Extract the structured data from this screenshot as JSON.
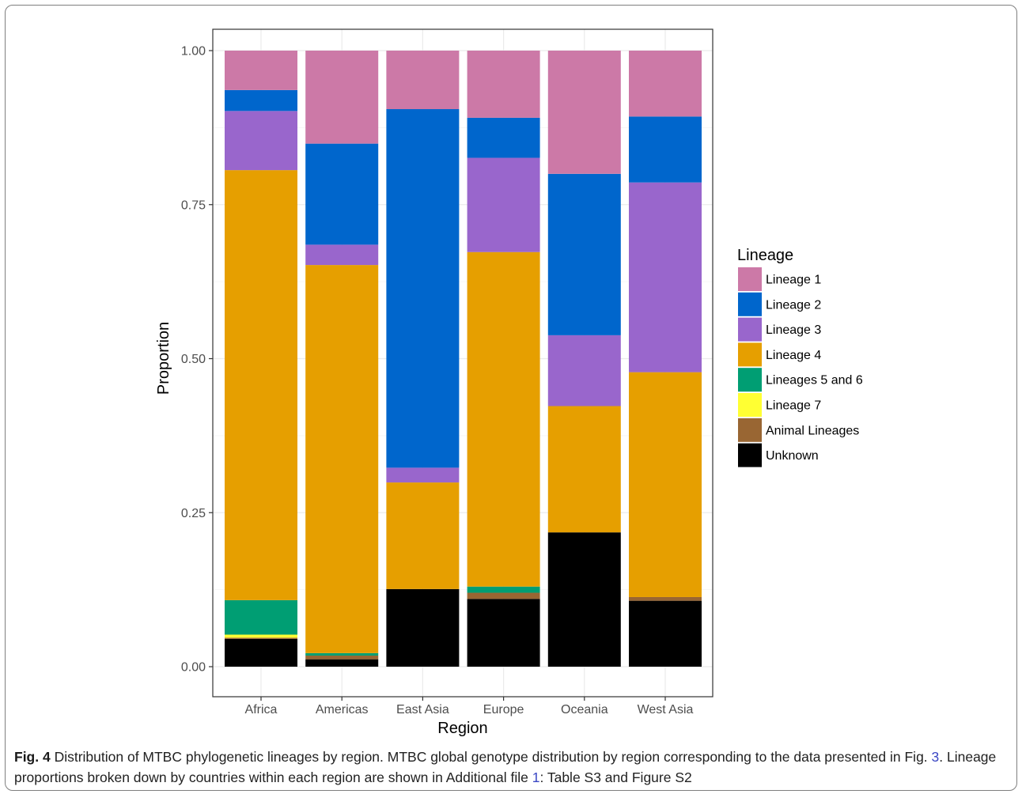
{
  "chart_data": {
    "type": "bar",
    "stacked": true,
    "xlabel": "Region",
    "ylabel": "Proportion",
    "ylim": [
      0,
      1
    ],
    "yticks": [
      "0.00",
      "0.25",
      "0.50",
      "0.75",
      "1.00"
    ],
    "ytick_values": [
      0,
      0.25,
      0.5,
      0.75,
      1.0
    ],
    "categories": [
      "Africa",
      "Americas",
      "East Asia",
      "Europe",
      "Oceania",
      "West Asia"
    ],
    "legend_title": "Lineage",
    "legend_position": "right",
    "grid": true,
    "series": [
      {
        "name": "Unknown",
        "color": "#000000",
        "values": [
          0.045,
          0.012,
          0.126,
          0.11,
          0.218,
          0.107
        ]
      },
      {
        "name": "Animal Lineages",
        "color": "#996633",
        "values": [
          0.002,
          0.006,
          0.0,
          0.01,
          0.0,
          0.006
        ]
      },
      {
        "name": "Lineage 7",
        "color": "#ffff33",
        "values": [
          0.005,
          0.0,
          0.0,
          0.0,
          0.0,
          0.0
        ]
      },
      {
        "name": "Lineages 5 and 6",
        "color": "#009e73",
        "values": [
          0.056,
          0.004,
          0.0,
          0.01,
          0.0,
          0.0
        ]
      },
      {
        "name": "Lineage 4",
        "color": "#e69f00",
        "values": [
          0.698,
          0.63,
          0.173,
          0.543,
          0.205,
          0.365
        ]
      },
      {
        "name": "Lineage 3",
        "color": "#9966cc",
        "values": [
          0.096,
          0.033,
          0.024,
          0.153,
          0.115,
          0.308
        ]
      },
      {
        "name": "Lineage 2",
        "color": "#0066cc",
        "values": [
          0.034,
          0.164,
          0.582,
          0.065,
          0.262,
          0.107
        ]
      },
      {
        "name": "Lineage 1",
        "color": "#cc79a7",
        "values": [
          0.064,
          0.151,
          0.095,
          0.109,
          0.2,
          0.107
        ]
      }
    ],
    "legend_order": [
      "Lineage 1",
      "Lineage 2",
      "Lineage 3",
      "Lineage 4",
      "Lineages 5 and 6",
      "Lineage 7",
      "Animal Lineages",
      "Unknown"
    ]
  },
  "caption": {
    "fig_label": "Fig. 4",
    "text_1": " Distribution of MTBC phylogenetic lineages by region. MTBC global genotype distribution by region corresponding to the data presented in Fig. ",
    "ref_fig": "3",
    "text_2": ". Lineage proportions broken down by countries within each region are shown in Additional file ",
    "ref_file": "1",
    "text_3": ": Table S3 and Figure S2"
  }
}
